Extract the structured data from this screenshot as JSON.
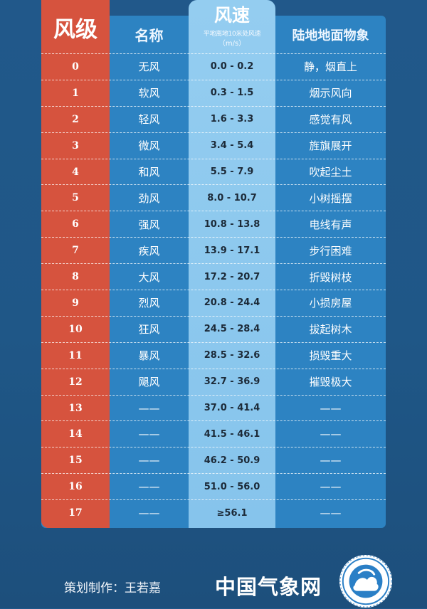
{
  "header": {
    "level": "风级",
    "name": "名称",
    "speed": "风速",
    "speed_sub": "平地离地10米处风速",
    "speed_unit": "（m/s）",
    "land": "陆地地面物象"
  },
  "rows": [
    {
      "level": "0",
      "name": "无风",
      "speed": "0.0 - 0.2",
      "land": "静，烟直上"
    },
    {
      "level": "1",
      "name": "软风",
      "speed": "0.3 - 1.5",
      "land": "烟示风向"
    },
    {
      "level": "2",
      "name": "轻风",
      "speed": "1.6 - 3.3",
      "land": "感觉有风"
    },
    {
      "level": "3",
      "name": "微风",
      "speed": "3.4 - 5.4",
      "land": "旌旗展开"
    },
    {
      "level": "4",
      "name": "和风",
      "speed": "5.5 - 7.9",
      "land": "吹起尘土"
    },
    {
      "level": "5",
      "name": "劲风",
      "speed": "8.0 - 10.7",
      "land": "小树摇摆"
    },
    {
      "level": "6",
      "name": "强风",
      "speed": "10.8 - 13.8",
      "land": "电线有声"
    },
    {
      "level": "7",
      "name": "疾风",
      "speed": "13.9 - 17.1",
      "land": "步行困难"
    },
    {
      "level": "8",
      "name": "大风",
      "speed": "17.2 - 20.7",
      "land": "折毁树枝"
    },
    {
      "level": "9",
      "name": "烈风",
      "speed": "20.8 - 24.4",
      "land": "小损房屋"
    },
    {
      "level": "10",
      "name": "狂风",
      "speed": "24.5 - 28.4",
      "land": "拔起树木"
    },
    {
      "level": "11",
      "name": "暴风",
      "speed": "28.5 - 32.6",
      "land": "损毁重大"
    },
    {
      "level": "12",
      "name": "飓风",
      "speed": "32.7 - 36.9",
      "land": "摧毁极大"
    },
    {
      "level": "13",
      "name": "——",
      "speed": "37.0 - 41.4",
      "land": "——"
    },
    {
      "level": "14",
      "name": "——",
      "speed": "41.5 - 46.1",
      "land": "——"
    },
    {
      "level": "15",
      "name": "——",
      "speed": "46.2 - 50.9",
      "land": "——"
    },
    {
      "level": "16",
      "name": "——",
      "speed": "51.0 - 56.0",
      "land": "——"
    },
    {
      "level": "17",
      "name": "——",
      "speed": "≥56.1",
      "land": "——"
    }
  ],
  "footer": {
    "credit": "策划制作：王若嘉",
    "brand": "中国气象网"
  },
  "colors": {
    "background": "#21588a",
    "panel": "#2d83c2",
    "level_column": "#d6533e",
    "speed_column": "#94cdf0"
  },
  "icons": {
    "logo": "cma-logo-icon"
  }
}
